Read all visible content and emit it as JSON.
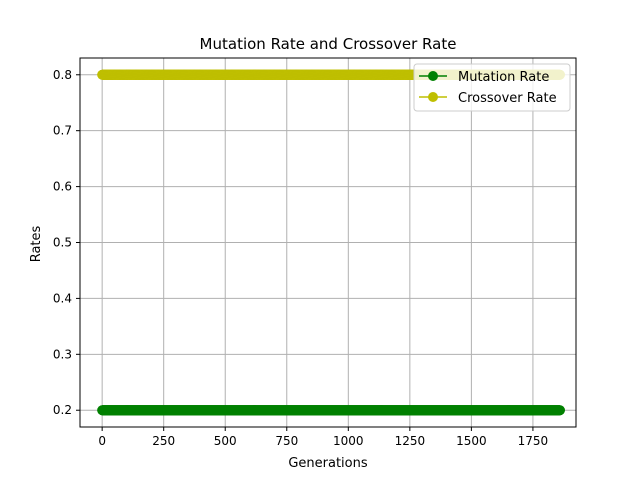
{
  "chart_data": {
    "type": "line",
    "title": "Mutation Rate and Crossover Rate",
    "xlabel": "Generations",
    "ylabel": "Rates",
    "xlim": [
      -90,
      1925
    ],
    "ylim": [
      0.17,
      0.83
    ],
    "xticks": [
      0,
      250,
      500,
      750,
      1000,
      1250,
      1500,
      1750
    ],
    "yticks": [
      0.2,
      0.3,
      0.4,
      0.5,
      0.6,
      0.7,
      0.8
    ],
    "ytick_labels": [
      "0.2",
      "0.3",
      "0.4",
      "0.5",
      "0.6",
      "0.7",
      "0.8"
    ],
    "grid": true,
    "legend_position": "top-right",
    "x_start": 0,
    "x_end": 1860,
    "series": [
      {
        "name": "Mutation Rate",
        "value": 0.2,
        "color": "#008000",
        "marker": "circle"
      },
      {
        "name": "Crossover Rate",
        "value": 0.8,
        "color": "#bfbf00",
        "marker": "circle"
      }
    ]
  }
}
